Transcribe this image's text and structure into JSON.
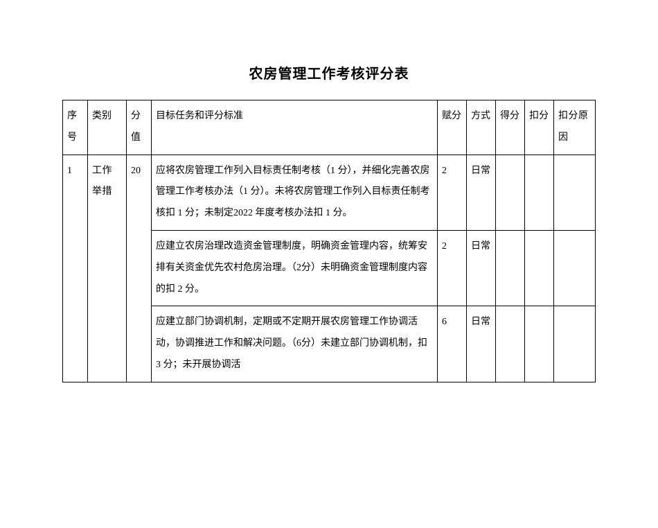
{
  "title": "农房管理工作考核评分表",
  "headers": {
    "seq": "序号",
    "category": "类别",
    "scoreValue": "分值",
    "criteria": "目标任务和评分标准",
    "assigned": "赋分",
    "method": "方式",
    "got": "得分",
    "deduct": "扣分",
    "reason": "扣分原因"
  },
  "rows": {
    "r1": {
      "seq": "1",
      "category": "工作举措",
      "scoreValue": "20",
      "criteria1": "应将农房管理工作列入目标责任制考核（1 分），并细化完善农房管理工作考核办法（1 分）。未将农房管理工作列入目标责任制考核扣 1 分；未制定2022 年度考核办法扣 1 分。",
      "assigned1": "2",
      "method1": "日常",
      "criteria2": "应建立农房治理改造资金管理制度，明确资金管理内容，统筹安排有关资金优先农村危房治理。（2分）未明确资金管理制度内容的扣 2 分。",
      "assigned2": "2",
      "method2": "日常",
      "criteria3": "应建立部门协调机制，定期或不定期开展农房管理工作协调活动，协调推进工作和解决问题。（6分）未建立部门协调机制，扣 3 分；未开展协调活",
      "assigned3": "6",
      "method3": "日常"
    }
  },
  "styles": {
    "background": "#ffffff",
    "borderColor": "#000000",
    "textColor": "#000000",
    "titleFontSize": 20,
    "bodyFontSize": 14,
    "lineHeight": 2.2
  }
}
